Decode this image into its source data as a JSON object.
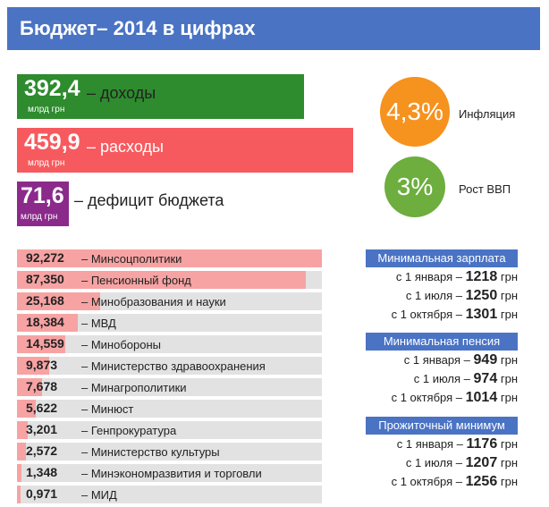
{
  "header": {
    "title": "Бюджет– 2014 в цифрах"
  },
  "colors": {
    "header": "#4a73c4",
    "revenue": "#2e8b2e",
    "expenses": "#f75a5e",
    "deficit": "#8b2a8b",
    "inflation": "#f6921e",
    "gdp": "#6dae3e",
    "ministry_fill": "#f7a3a3",
    "ministry_track": "#e2e2e2"
  },
  "unit": "млрд грн",
  "totals": [
    {
      "value": "392,4",
      "label": "– доходы",
      "color": "revenue"
    },
    {
      "value": "459,9",
      "label": "– расходы",
      "color": "expenses"
    },
    {
      "value": "71,6",
      "label": "– дефицит бюджета",
      "color": "deficit"
    }
  ],
  "indicators": {
    "inflation": {
      "value": "4,3%",
      "label": "Инфляция"
    },
    "gdp": {
      "value": "3%",
      "label": "Рост ВВП"
    }
  },
  "chart_data": {
    "type": "bar",
    "title": "",
    "categories": [
      "– Минсоцполитики",
      "– Пенсионный фонд",
      "– Минобразования и науки",
      "– МВД",
      "– Минобороны",
      "– Министерство здравоохранения",
      "– Минагрополитики",
      "– Минюст",
      "– Генпрокуратура",
      "– Министерство культуры",
      "– Минэкономразвития и торговли",
      "– МИД"
    ],
    "values": [
      92.272,
      87.35,
      25.168,
      18.384,
      14.559,
      9.873,
      7.678,
      5.622,
      3.201,
      2.572,
      1.348,
      0.971
    ],
    "value_labels": [
      "92,272",
      "87,350",
      "25,168",
      "18,384",
      "14,559",
      "9,873",
      "7,678",
      "5,622",
      "3,201",
      "2,572",
      "1,348",
      "0,971"
    ],
    "xlim": [
      0,
      92.272
    ]
  },
  "side_panels": [
    {
      "title": "Минимальная зарплата",
      "rows": [
        {
          "prefix": "с 1 января –",
          "value": "1218",
          "suffix": "грн"
        },
        {
          "prefix": "с 1 июля –",
          "value": "1250",
          "suffix": "грн"
        },
        {
          "prefix": "с 1 октября –",
          "value": "1301",
          "suffix": "грн"
        }
      ]
    },
    {
      "title": "Минимальная пенсия",
      "rows": [
        {
          "prefix": "с 1 января –",
          "value": "949",
          "suffix": "грн"
        },
        {
          "prefix": "с 1 июля –",
          "value": "974",
          "suffix": "грн"
        },
        {
          "prefix": "с 1 октября –",
          "value": "1014",
          "suffix": "грн"
        }
      ]
    },
    {
      "title": "Прожиточный минимум",
      "rows": [
        {
          "prefix": "с 1 января –",
          "value": "1176",
          "suffix": "грн"
        },
        {
          "prefix": "с 1 июля –",
          "value": "1207",
          "suffix": "грн"
        },
        {
          "prefix": "с 1 октября –",
          "value": "1256",
          "suffix": "грн"
        }
      ]
    }
  ]
}
